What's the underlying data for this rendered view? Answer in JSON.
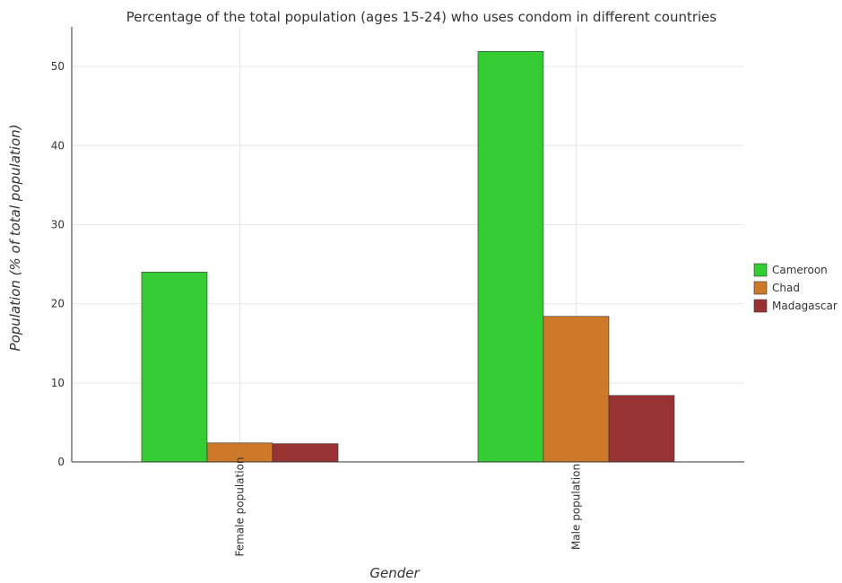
{
  "chart_data": {
    "type": "bar",
    "title": "Percentage of the total population (ages 15-24) who uses condom in different countries",
    "xlabel": "Gender",
    "ylabel": "Population (% of total population)",
    "categories": [
      "Female population",
      "Male population"
    ],
    "series": [
      {
        "name": "Cameroon",
        "color": "#33cc33",
        "values": [
          24.0,
          51.9
        ]
      },
      {
        "name": "Chad",
        "color": "#cc7a29",
        "values": [
          2.4,
          18.4
        ]
      },
      {
        "name": "Madagascar",
        "color": "#993333",
        "values": [
          2.3,
          8.4
        ]
      }
    ],
    "ylim": [
      0,
      55
    ],
    "yticks": [
      0,
      10,
      20,
      30,
      40,
      50
    ],
    "grid": true,
    "legend_position": "right"
  }
}
